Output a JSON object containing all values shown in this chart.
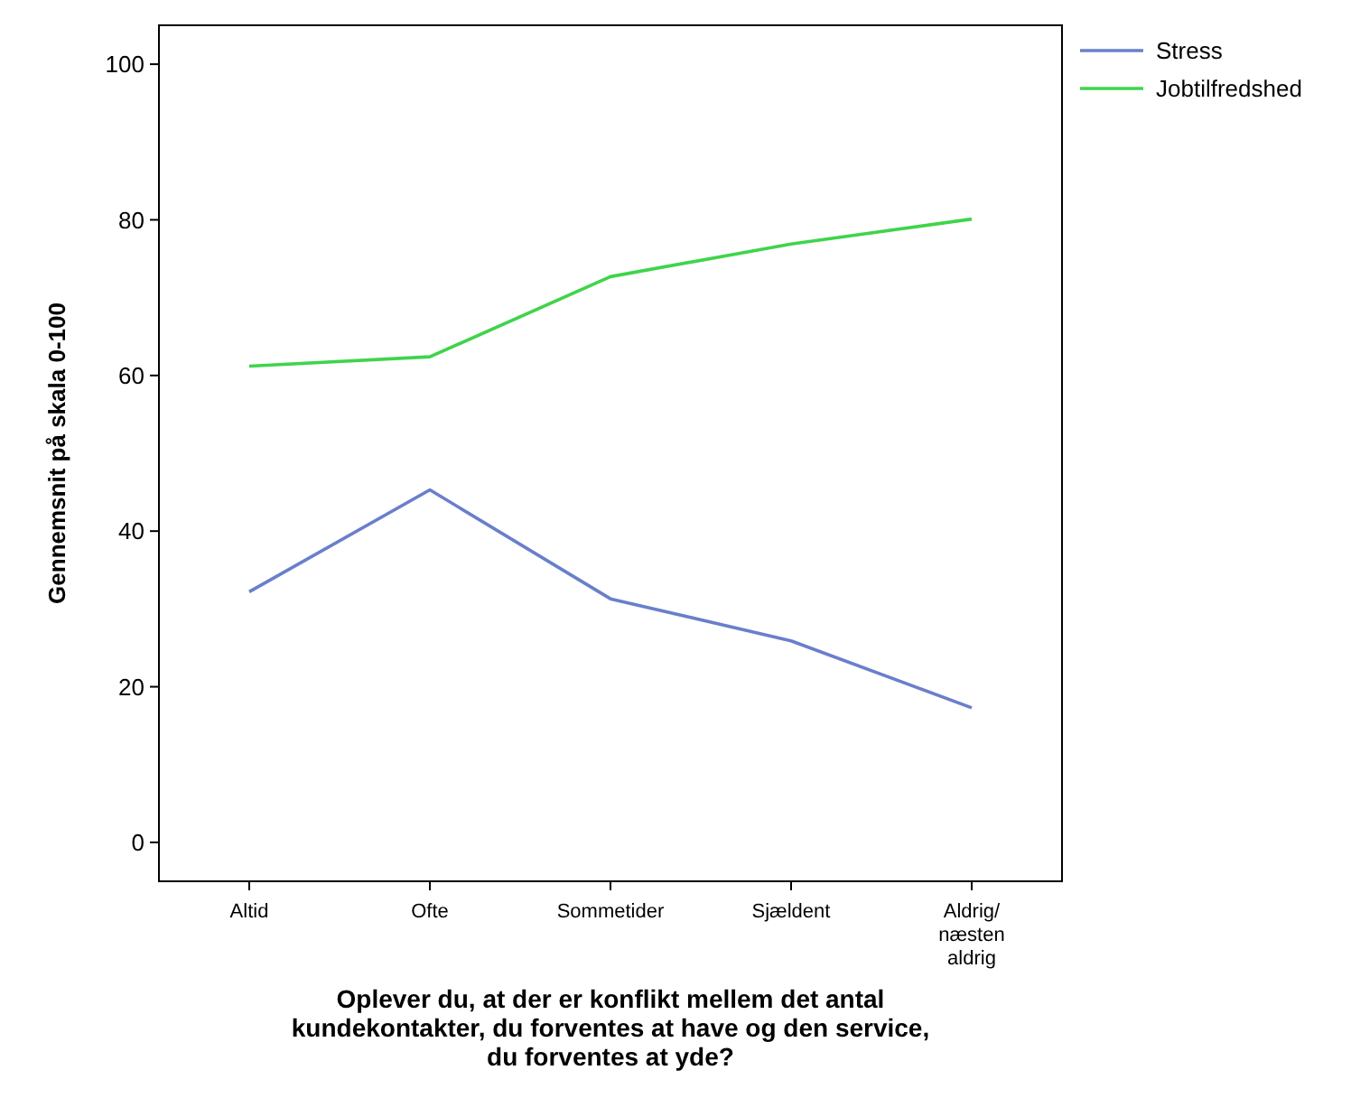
{
  "chart_data": {
    "type": "line",
    "xlabel": "Oplever du, at der er konflikt mellem det antal kundekontakter, du forventes at have og den service, du forventes at yde?",
    "ylabel": "Gennemsnit på skala 0-100",
    "categories": [
      "Altid",
      "Ofte",
      "Sommetider",
      "Sjældent",
      "Aldrig/ næsten aldrig"
    ],
    "series": [
      {
        "name": "Stress",
        "color": "#6a7fcb",
        "values": [
          32.2,
          45.3,
          31.3,
          25.9,
          17.3
        ]
      },
      {
        "name": "Jobtilfredshed",
        "color": "#3fd44b",
        "values": [
          61.2,
          62.4,
          72.7,
          76.9,
          80.1
        ]
      }
    ],
    "ylim": [
      -5,
      105
    ],
    "yticks": [
      0,
      20,
      40,
      60,
      80,
      100
    ],
    "legend": "top right",
    "grid": false,
    "marker": "none",
    "line_style": "solid"
  }
}
